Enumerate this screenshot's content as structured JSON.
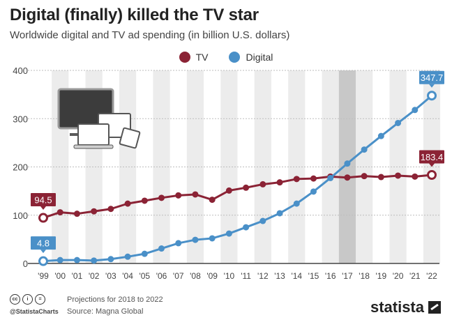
{
  "header": {
    "title": "Digital (finally) killed the TV star",
    "subtitle": "Worldwide digital and TV ad spending (in billion U.S. dollars)"
  },
  "legend": {
    "tv_label": "TV",
    "digital_label": "Digital"
  },
  "colors": {
    "tv": "#8b2335",
    "digital": "#4a90c8",
    "stripe": "#ececec",
    "projection": "#c8c8c8"
  },
  "footer": {
    "note": "Projections for 2018 to 2022",
    "source": "Source: Magna Global",
    "handle": "@StatistaCharts",
    "brand": "statista",
    "cc_icons": [
      "cc-icon",
      "by-icon",
      "nd-icon"
    ]
  },
  "chart_data": {
    "type": "line",
    "title": "Digital (finally) killed the TV star",
    "subtitle": "Worldwide digital and TV ad spending (in billion U.S. dollars)",
    "categories": [
      "'99",
      "'00",
      "'01",
      "'02",
      "'03",
      "'04",
      "'05",
      "'06",
      "'07",
      "'08",
      "'09",
      "'10",
      "'11",
      "'12",
      "'13",
      "'14",
      "'15",
      "'16",
      "'17",
      "'18",
      "'19",
      "'20",
      "'21",
      "'22"
    ],
    "yticks": [
      0,
      100,
      200,
      300,
      400
    ],
    "ylim": [
      0,
      400
    ],
    "highlight_category": "'17",
    "series": [
      {
        "name": "TV",
        "values": [
          94.5,
          106,
          103,
          108,
          113,
          124,
          130,
          136,
          141,
          143,
          132,
          151,
          157,
          164,
          168,
          175,
          176,
          180,
          178,
          181,
          179,
          182,
          180,
          183.4
        ],
        "start_label": "94.5",
        "end_label": "183.4"
      },
      {
        "name": "Digital",
        "values": [
          4.8,
          7,
          7,
          6,
          9,
          14,
          20,
          31,
          42,
          49,
          52,
          62,
          75,
          88,
          104,
          124,
          149,
          177,
          207,
          236,
          264,
          291,
          318,
          347.7
        ],
        "start_label": "4.8",
        "end_label": "347.7"
      }
    ]
  }
}
